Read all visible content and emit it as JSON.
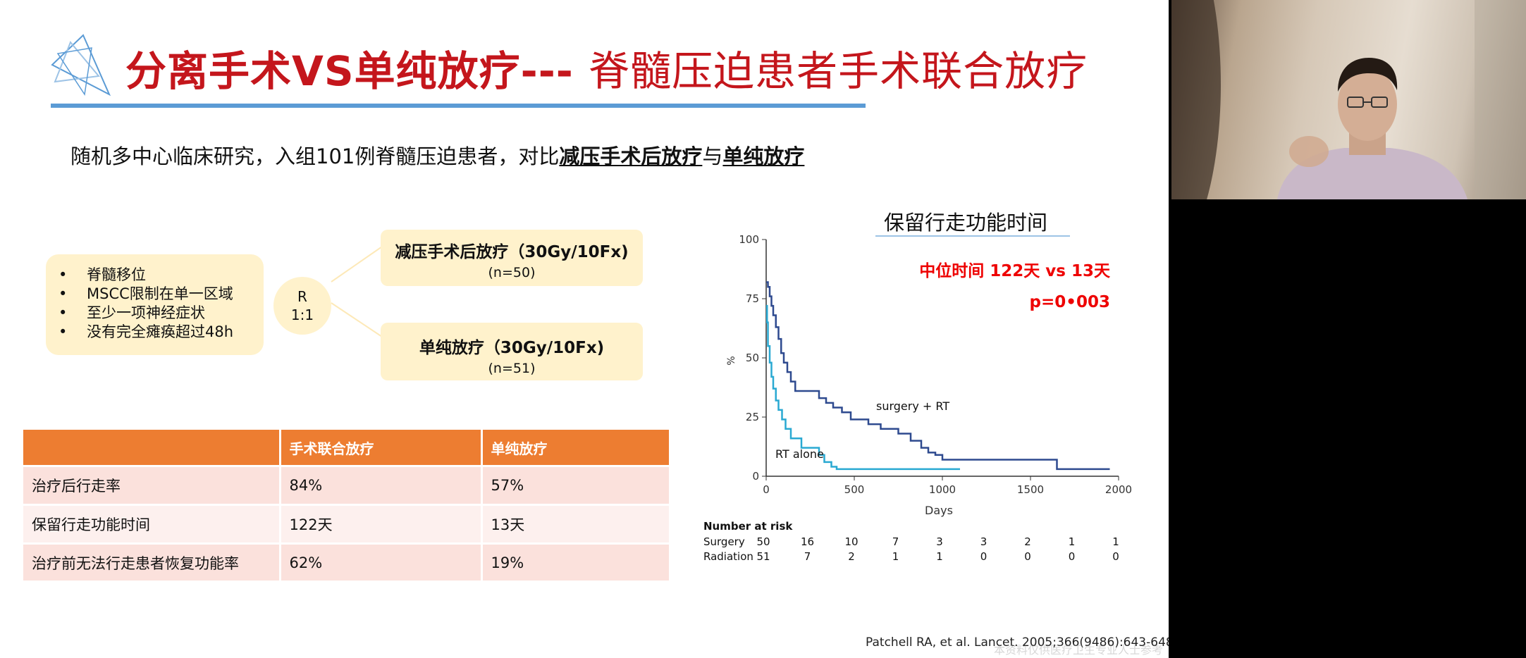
{
  "slide": {
    "title_main": "分离手术VS单纯放疗---",
    "title_sub": "脊髓压迫患者手术联合放疗",
    "intro_prefix": "随机多中心临床研究，入组101例脊髓压迫患者，对比",
    "intro_bold1": "减压手术后放疗",
    "intro_mid": "与",
    "intro_bold2": "单纯放疗",
    "criteria": [
      "脊髓移位",
      "MSCC限制在单一区域",
      "至少一项神经症状",
      "没有完全瘫痪超过48h"
    ],
    "randomization": {
      "label": "R",
      "ratio": "1:1"
    },
    "arm1": {
      "name": "减压手术后放疗（30Gy/10Fx)",
      "n": "(n=50)"
    },
    "arm2": {
      "name": "单纯放疗（30Gy/10Fx)",
      "n": "(n=51)"
    },
    "table": {
      "headers": [
        "",
        "手术联合放疗",
        "单纯放疗"
      ],
      "rows": [
        [
          "治疗后行走率",
          "84%",
          "57%"
        ],
        [
          "保留行走功能时间",
          "122天",
          "13天"
        ],
        [
          "治疗前无法行走患者恢复功能率",
          "62%",
          "19%"
        ]
      ]
    },
    "citation": "Patchell RA, et al. Lancet. 2005;366(9486):643-648",
    "watermark": "本资料仅供医疗卫生专业人士参考"
  },
  "chart_data": {
    "type": "line",
    "title": "保留行走功能时间",
    "annotation_median": "中位时间 122天 vs 13天",
    "annotation_p": "p=0•003",
    "xlabel": "Days",
    "ylabel": "%",
    "xlim": [
      0,
      2000
    ],
    "ylim": [
      0,
      100
    ],
    "xticks": [
      0,
      500,
      1000,
      1500,
      2000
    ],
    "yticks": [
      0,
      25,
      50,
      75,
      100
    ],
    "grid": false,
    "series": [
      {
        "name": "surgery + RT",
        "color": "#2e4a8f",
        "x": [
          0,
          10,
          20,
          30,
          40,
          55,
          70,
          85,
          100,
          120,
          140,
          165,
          200,
          260,
          300,
          340,
          380,
          430,
          480,
          530,
          580,
          650,
          750,
          820,
          880,
          920,
          960,
          1000,
          1100,
          1250,
          1400,
          1600,
          1650,
          1800,
          1950
        ],
        "y": [
          82,
          80,
          76,
          72,
          68,
          63,
          58,
          52,
          48,
          44,
          40,
          36,
          36,
          36,
          33,
          31,
          29,
          27,
          24,
          24,
          22,
          20,
          18,
          15,
          12,
          10,
          9,
          7,
          7,
          7,
          7,
          7,
          3,
          3,
          3
        ]
      },
      {
        "name": "RT alone",
        "color": "#2aa9d2",
        "x": [
          0,
          5,
          10,
          20,
          30,
          40,
          55,
          70,
          90,
          110,
          140,
          200,
          300,
          330,
          370,
          400,
          500,
          700,
          900,
          1100
        ],
        "y": [
          72,
          65,
          55,
          48,
          42,
          37,
          32,
          28,
          24,
          20,
          16,
          12,
          9,
          6,
          4,
          3,
          3,
          3,
          3,
          3
        ]
      }
    ],
    "risk_table": {
      "title": "Number at risk",
      "rows": [
        {
          "label": "Surgery",
          "values": [
            "50",
            "16",
            "10",
            "7",
            "3",
            "3",
            "2",
            "1",
            "1"
          ]
        },
        {
          "label": "Radiation",
          "values": [
            "51",
            "7",
            "2",
            "1",
            "1",
            "0",
            "0",
            "0",
            "0"
          ]
        }
      ],
      "times": [
        0,
        250,
        500,
        750,
        1000,
        1250,
        1500,
        1750,
        2000
      ]
    }
  }
}
